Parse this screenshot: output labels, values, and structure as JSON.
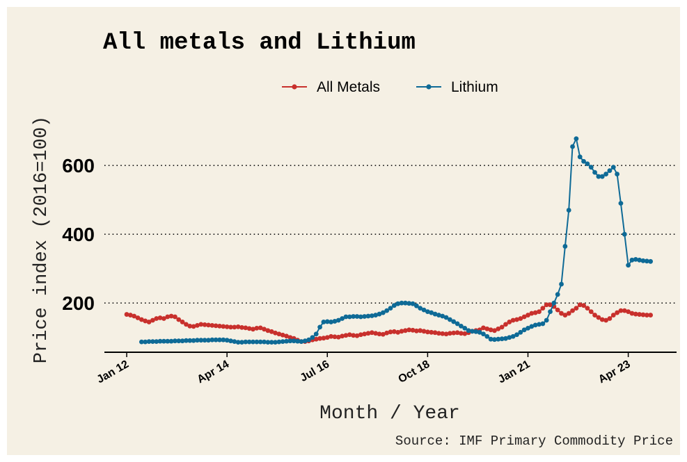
{
  "chart_data": {
    "type": "line",
    "title": "All metals and Lithium",
    "x_label": "Month / Year",
    "y_label": "Price index (2016=100)",
    "source": "Source: IMF Primary Commodity Price",
    "legend": "top",
    "grid": true,
    "x": [
      "2012-01",
      "2012-02",
      "2012-03",
      "2012-04",
      "2012-05",
      "2012-06",
      "2012-07",
      "2012-08",
      "2012-09",
      "2012-10",
      "2012-11",
      "2012-12",
      "2013-01",
      "2013-02",
      "2013-03",
      "2013-04",
      "2013-05",
      "2013-06",
      "2013-07",
      "2013-08",
      "2013-09",
      "2013-10",
      "2013-11",
      "2013-12",
      "2014-01",
      "2014-02",
      "2014-03",
      "2014-04",
      "2014-05",
      "2014-06",
      "2014-07",
      "2014-08",
      "2014-09",
      "2014-10",
      "2014-11",
      "2014-12",
      "2015-01",
      "2015-02",
      "2015-03",
      "2015-04",
      "2015-05",
      "2015-06",
      "2015-07",
      "2015-08",
      "2015-09",
      "2015-10",
      "2015-11",
      "2015-12",
      "2016-01",
      "2016-02",
      "2016-03",
      "2016-04",
      "2016-05",
      "2016-06",
      "2016-07",
      "2016-08",
      "2016-09",
      "2016-10",
      "2016-11",
      "2016-12",
      "2017-01",
      "2017-02",
      "2017-03",
      "2017-04",
      "2017-05",
      "2017-06",
      "2017-07",
      "2017-08",
      "2017-09",
      "2017-10",
      "2017-11",
      "2017-12",
      "2018-01",
      "2018-02",
      "2018-03",
      "2018-04",
      "2018-05",
      "2018-06",
      "2018-07",
      "2018-08",
      "2018-09",
      "2018-10",
      "2018-11",
      "2018-12",
      "2019-01",
      "2019-02",
      "2019-03",
      "2019-04",
      "2019-05",
      "2019-06",
      "2019-07",
      "2019-08",
      "2019-09",
      "2019-10",
      "2019-11",
      "2019-12",
      "2020-01",
      "2020-02",
      "2020-03",
      "2020-04",
      "2020-05",
      "2020-06",
      "2020-07",
      "2020-08",
      "2020-09",
      "2020-10",
      "2020-11",
      "2020-12",
      "2021-01",
      "2021-02",
      "2021-03",
      "2021-04",
      "2021-05",
      "2021-06",
      "2021-07",
      "2021-08",
      "2021-09",
      "2021-10",
      "2021-11",
      "2021-12",
      "2022-01",
      "2022-02",
      "2022-03",
      "2022-04",
      "2022-05",
      "2022-06",
      "2022-07",
      "2022-08",
      "2022-09",
      "2022-10",
      "2022-11",
      "2022-12",
      "2023-01",
      "2023-02",
      "2023-03",
      "2023-04",
      "2023-05",
      "2023-06",
      "2023-07",
      "2023-08",
      "2023-09",
      "2023-10"
    ],
    "series": [
      {
        "name": "All Metals",
        "color": "#c8302c",
        "values": [
          167,
          165,
          162,
          157,
          152,
          148,
          145,
          150,
          155,
          157,
          155,
          160,
          162,
          160,
          152,
          145,
          138,
          133,
          132,
          135,
          138,
          137,
          136,
          135,
          134,
          133,
          132,
          131,
          130,
          130,
          131,
          129,
          128,
          126,
          124,
          127,
          128,
          124,
          120,
          117,
          113,
          110,
          107,
          104,
          100,
          97,
          92,
          88,
          88,
          90,
          93,
          95,
          97,
          98,
          100,
          103,
          102,
          101,
          104,
          106,
          108,
          106,
          105,
          108,
          110,
          112,
          114,
          112,
          110,
          109,
          113,
          116,
          117,
          115,
          118,
          120,
          122,
          121,
          119,
          120,
          118,
          116,
          115,
          114,
          112,
          111,
          110,
          112,
          113,
          114,
          112,
          111,
          114,
          118,
          120,
          122,
          128,
          125,
          122,
          120,
          125,
          130,
          138,
          145,
          150,
          152,
          155,
          160,
          165,
          170,
          172,
          175,
          185,
          195,
          195,
          190,
          180,
          170,
          165,
          170,
          178,
          185,
          195,
          193,
          185,
          175,
          165,
          158,
          152,
          150,
          155,
          165,
          172,
          178,
          178,
          175,
          170,
          168,
          167,
          166,
          165,
          165
        ]
      },
      {
        "name": "Lithium",
        "color": "#0e6a96",
        "values": [
          null,
          null,
          null,
          null,
          87,
          87,
          88,
          88,
          88,
          89,
          89,
          89,
          89,
          90,
          90,
          90,
          91,
          91,
          91,
          92,
          92,
          92,
          92,
          93,
          93,
          93,
          93,
          92,
          90,
          88,
          86,
          86,
          87,
          87,
          87,
          87,
          87,
          87,
          86,
          86,
          86,
          87,
          88,
          89,
          90,
          90,
          89,
          88,
          90,
          93,
          100,
          110,
          130,
          145,
          146,
          145,
          147,
          150,
          155,
          160,
          160,
          161,
          161,
          160,
          161,
          162,
          163,
          165,
          168,
          172,
          178,
          185,
          193,
          198,
          200,
          200,
          199,
          198,
          192,
          185,
          180,
          175,
          172,
          168,
          165,
          162,
          158,
          152,
          146,
          140,
          133,
          127,
          120,
          118,
          117,
          115,
          110,
          103,
          95,
          94,
          95,
          96,
          97,
          100,
          103,
          108,
          115,
          122,
          127,
          132,
          136,
          138,
          140,
          150,
          175,
          200,
          225,
          255,
          365,
          470,
          655,
          678,
          625,
          612,
          605,
          595,
          580,
          568,
          568,
          575,
          585,
          595,
          575,
          490,
          400,
          310,
          325,
          327,
          325,
          323,
          322,
          321
        ]
      }
    ],
    "xlim": [
      "2011-07",
      "2024-05"
    ],
    "xticks": [
      {
        "value": "2012-01",
        "label": "Jan 12"
      },
      {
        "value": "2014-04",
        "label": "Apr 14"
      },
      {
        "value": "2016-07",
        "label": "Jul 16"
      },
      {
        "value": "2018-10",
        "label": "Oct 18"
      },
      {
        "value": "2021-01",
        "label": "Jan 21"
      },
      {
        "value": "2023-04",
        "label": "Apr 23"
      }
    ],
    "ylim": [
      57,
      760
    ],
    "yticks": [
      200,
      400,
      600
    ]
  }
}
